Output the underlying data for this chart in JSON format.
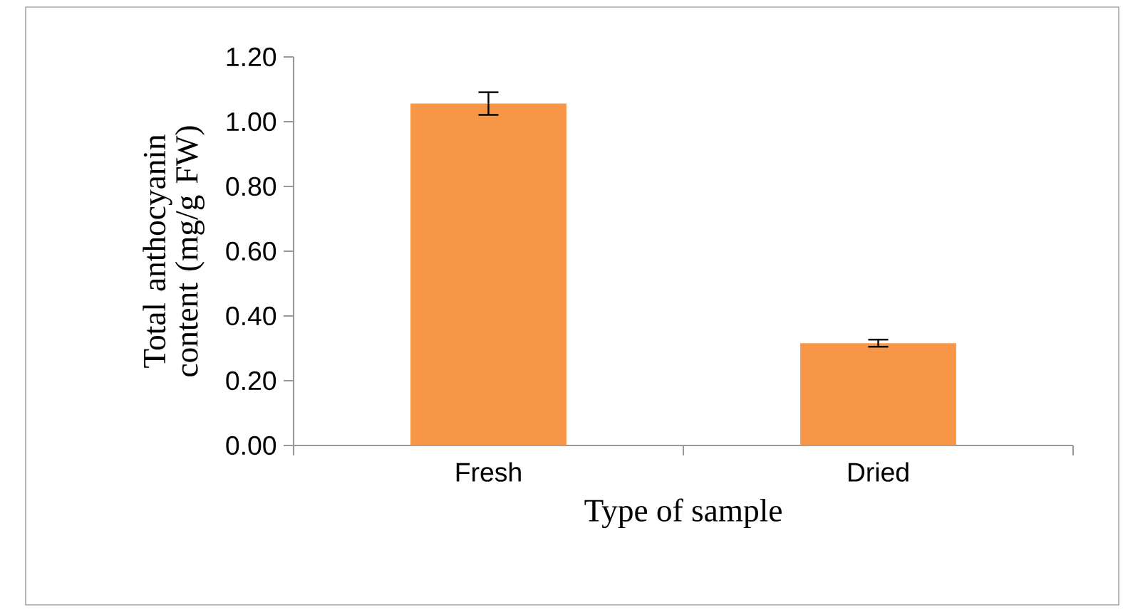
{
  "chart_data": {
    "type": "bar",
    "xlabel": "Type of sample",
    "ylabel": "Total anthocyanin content (mg/g FW)",
    "categories": [
      "Fresh",
      "Dried"
    ],
    "values": [
      1.056,
      0.316
    ],
    "errors": [
      0.035,
      0.011
    ],
    "color": "#f79646",
    "ylim": [
      0,
      1.2
    ],
    "yticks": [
      {
        "value": 0,
        "label": "0.00"
      },
      {
        "value": 0.2,
        "label": "0.20"
      },
      {
        "value": 0.4,
        "label": "0.40"
      },
      {
        "value": 0.6,
        "label": "0.60"
      },
      {
        "value": 0.8,
        "label": "0.80"
      },
      {
        "value": 1.0,
        "label": "1.00"
      },
      {
        "value": 1.2,
        "label": "1.20"
      }
    ],
    "grid": false
  }
}
